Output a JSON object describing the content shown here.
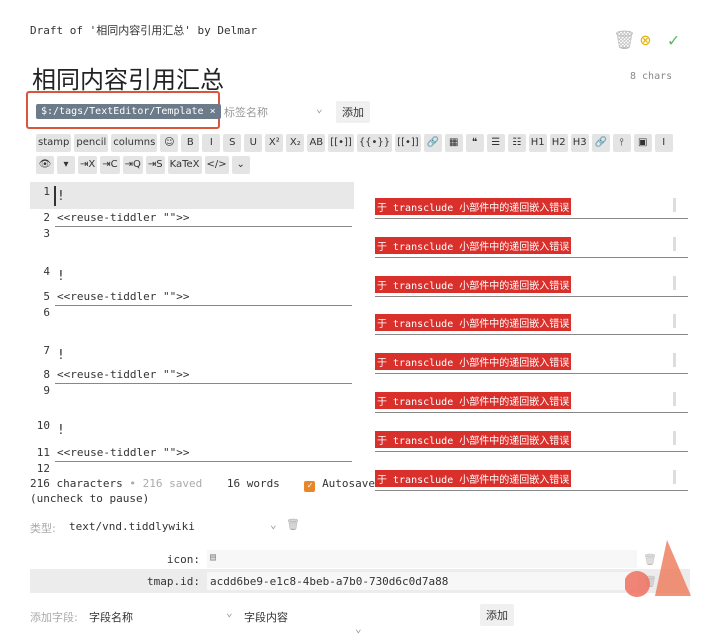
{
  "header": {
    "draft_label": "Draft of '相同内容引用汇总' by Delmar",
    "title": "相同内容引用汇总",
    "char_count": "8 chars",
    "delete_icon": "trash-icon",
    "cancel_icon": "circle-x-icon",
    "save_icon": "check-icon"
  },
  "tags": {
    "tag": "$:/tags/TextEditor/Template",
    "remove": "×",
    "placeholder": "标签名称",
    "add_label": "添加"
  },
  "toolbar": {
    "row1": [
      "stamp",
      "pencil",
      "columns",
      "☺",
      "B",
      "I",
      "S",
      "U",
      "X²",
      "X₂",
      "AB",
      "[[•]]",
      "{{•}}",
      "[[•]]",
      "🔗",
      "▦",
      "❝",
      "☰",
      "☷",
      "H1",
      "H2",
      "H3",
      "🔗",
      "⫯",
      "▣",
      "Ⅰ"
    ],
    "row2": [
      "👁",
      "▾",
      "⇥X",
      "⇥C",
      "⇥Q",
      "⇥S",
      "KaTeX",
      "</>",
      "⌄"
    ]
  },
  "editor": {
    "lines": [
      {
        "n": "1",
        "text": "!"
      },
      {
        "n": "2",
        "text": "<<reuse-tiddler \"\">>"
      },
      {
        "n": "3",
        "text": ""
      },
      {
        "n": "4",
        "text": "!"
      },
      {
        "n": "5",
        "text": "<<reuse-tiddler \"\">>"
      },
      {
        "n": "6",
        "text": ""
      },
      {
        "n": "7",
        "text": "!"
      },
      {
        "n": "8",
        "text": "<<reuse-tiddler \"\">>"
      },
      {
        "n": "9",
        "text": ""
      },
      {
        "n": "10",
        "text": "!"
      },
      {
        "n": "11",
        "text": "<<reuse-tiddler \"\">>"
      },
      {
        "n": "12",
        "text": ""
      }
    ]
  },
  "preview": {
    "error": "于 transclude 小部件中的递回嵌入错误",
    "count": 8
  },
  "status": {
    "characters": "216 characters",
    "saved": "• 216 saved",
    "words": "16 words",
    "autosave": "Autosave",
    "autosave_checked": true,
    "hint": "(uncheck to pause)"
  },
  "type": {
    "label": "类型:",
    "value": "text/vnd.tiddlywiki"
  },
  "fields": [
    {
      "name": "icon:",
      "value": ""
    },
    {
      "name": "tmap.id:",
      "value": "acdd6be9-e1c8-4beb-a7b0-730d6c0d7a88"
    }
  ],
  "add_field": {
    "label": "添加字段:",
    "name_placeholder": "字段名称",
    "value_placeholder": "字段内容",
    "add_label": "添加"
  },
  "colors": {
    "accent": "#d9553b",
    "error": "#d9302c",
    "tag": "#6b7b8a"
  }
}
